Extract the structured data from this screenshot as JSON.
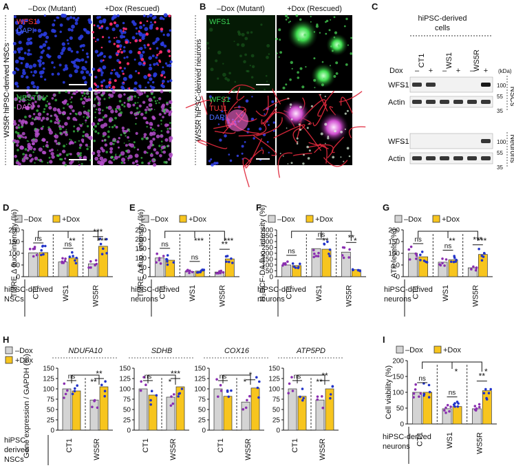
{
  "panel_letters": [
    "A",
    "B",
    "C",
    "D",
    "E",
    "F",
    "G",
    "H",
    "I"
  ],
  "panelA": {
    "col_labels": [
      "–Dox (Mutant)",
      "+Dox (Rescued)"
    ],
    "side_label": "WS5R hiPSC-derived NSCs",
    "top_stains": [
      {
        "text": "WFS1",
        "color": "#ff3b3b"
      },
      {
        "text": "DAPI",
        "color": "#4b6bff"
      }
    ],
    "bottom_stains": [
      {
        "text": "NESTIN",
        "color": "#39d353"
      },
      {
        "text": "DAPI",
        "color": "#e36be3"
      }
    ]
  },
  "panelB": {
    "col_labels": [
      "–Dox (Mutant)",
      "+Dox (Rescued)"
    ],
    "side_label": "WS5R hiPSC-derived neurons",
    "top_stains": [
      {
        "text": "WFS1",
        "color": "#39d353"
      }
    ],
    "bottom_stains": [
      {
        "text": "WFS1",
        "color": "#39d353"
      },
      {
        "text": "TUJ1",
        "color": "#ff3b3b"
      },
      {
        "text": "DAPI",
        "color": "#4b6bff"
      }
    ]
  },
  "panelC": {
    "header": "hiPSC-derived cells",
    "lines": [
      "CT1",
      "WS1",
      "WS5R"
    ],
    "dox_label": "Dox",
    "dox_signs": [
      "–",
      "+",
      "–",
      "+",
      "–",
      "+"
    ],
    "kda": "(kDa)",
    "rows": [
      {
        "label": "WFS1",
        "markers": [
          "100"
        ]
      },
      {
        "label": "Actin",
        "markers": [
          "55",
          "35"
        ]
      },
      {
        "label": "WFS1",
        "markers": [
          "100"
        ]
      },
      {
        "label": "Actin",
        "markers": [
          "55",
          "35"
        ]
      }
    ],
    "groups": [
      "NSCs",
      "Neurons"
    ]
  },
  "legend": {
    "minus": "–Dox",
    "plus": "+Dox"
  },
  "colors": {
    "minus_bar": "#d4d4d4",
    "plus_bar": "#f7c51e",
    "dot_purple": "#8a2fb0",
    "dot_blue": "#2233c8"
  },
  "chart_data": [
    {
      "panel": "D",
      "type": "bar",
      "ylabel": "TMRE Δ fluo. intensity (%)",
      "ylim": [
        0,
        200
      ],
      "yticks": [
        0,
        50,
        100,
        150,
        200
      ],
      "categories": [
        "CT1",
        "WS1",
        "WS5R"
      ],
      "row_label": "hiPSC-derived NSCs",
      "series": [
        {
          "name": "–Dox",
          "values": [
            102,
            63,
            55
          ]
        },
        {
          "name": "+Dox",
          "values": [
            103,
            80,
            130
          ]
        }
      ],
      "annotations": {
        "pairs": [
          "ns",
          "ns",
          "***"
        ],
        "brackets": [
          "**",
          "***"
        ]
      }
    },
    {
      "panel": "E",
      "type": "bar",
      "ylabel": "TMRE Δ fluo. intensity (%)",
      "ylim": [
        0,
        250
      ],
      "yticks": [
        0,
        50,
        100,
        150,
        200,
        250
      ],
      "categories": [
        "CT1",
        "WS1",
        "WS5R"
      ],
      "row_label": "hiPSC-derived neurons",
      "series": [
        {
          "name": "–Dox",
          "values": [
            100,
            28,
            25
          ]
        },
        {
          "name": "+Dox",
          "values": [
            88,
            30,
            95
          ]
        }
      ],
      "annotations": {
        "pairs": [
          "ns",
          "ns",
          "**"
        ],
        "brackets": [
          "***",
          "***"
        ]
      }
    },
    {
      "panel": "F",
      "type": "bar",
      "ylabel": "H₂DCF-DA fluo. intensity (%)",
      "ylim": [
        0,
        400
      ],
      "yticks": [
        0,
        50,
        100,
        150,
        200,
        250,
        300,
        350,
        400
      ],
      "categories": [
        "CT1",
        "WS1",
        "WS5R"
      ],
      "row_label": "hiPSC-derived neurons",
      "series": [
        {
          "name": "–Dox",
          "values": [
            100,
            240,
            210
          ]
        },
        {
          "name": "+Dox",
          "values": [
            95,
            235,
            60
          ]
        }
      ],
      "annotations": {
        "pairs": [
          "ns",
          "ns",
          "**"
        ],
        "brackets": [
          "**",
          "*"
        ]
      }
    },
    {
      "panel": "G",
      "type": "bar",
      "ylabel": "ATP levels (%)",
      "ylim": [
        0,
        200
      ],
      "yticks": [
        0,
        50,
        100,
        150,
        200
      ],
      "categories": [
        "CT1",
        "WS1",
        "WS5R"
      ],
      "row_label": "hiPSC-derived neurons",
      "series": [
        {
          "name": "–Dox",
          "values": [
            100,
            62,
            38
          ]
        },
        {
          "name": "+Dox",
          "values": [
            85,
            72,
            95
          ]
        }
      ],
      "annotations": {
        "pairs": [
          "ns",
          "ns",
          "***"
        ],
        "brackets": [
          "**",
          "***"
        ]
      }
    },
    {
      "panel": "H",
      "type": "bar",
      "ylabel": "Gene expression / GAPDH (%)",
      "ylim": [
        0,
        150
      ],
      "yticks": [
        0,
        25,
        50,
        75,
        100,
        125,
        150
      ],
      "categories": [
        "CT1",
        "WS5R"
      ],
      "row_label": "hiPSC-derived NSCs",
      "subplots": [
        {
          "gene": "NDUFA10",
          "minus": [
            100,
            73
          ],
          "plus": [
            95,
            105
          ],
          "pairs": [
            "ns",
            "**"
          ],
          "bracket": "**"
        },
        {
          "gene": "SDHB",
          "minus": [
            100,
            80
          ],
          "plus": [
            85,
            105
          ],
          "pairs": [
            "ns",
            "***"
          ],
          "bracket": "*"
        },
        {
          "gene": "COX16",
          "minus": [
            100,
            68
          ],
          "plus": [
            82,
            102
          ],
          "pairs": [
            "ns",
            "*"
          ],
          "bracket": "*"
        },
        {
          "gene": "ATP5PD",
          "minus": [
            100,
            73
          ],
          "plus": [
            82,
            100
          ],
          "pairs": [
            "ns",
            "**"
          ],
          "bracket": "**"
        }
      ]
    },
    {
      "panel": "I",
      "type": "bar",
      "ylabel": "Cell viability (%)",
      "ylim": [
        0,
        200
      ],
      "yticks": [
        0,
        50,
        100,
        150,
        200
      ],
      "categories": [
        "CT1",
        "WS1",
        "WS5R"
      ],
      "row_label": "hiPSC-derived neurons",
      "series": [
        {
          "name": "–Dox",
          "values": [
            100,
            48,
            48
          ]
        },
        {
          "name": "+Dox",
          "values": [
            100,
            55,
            105
          ]
        }
      ],
      "annotations": {
        "pairs": [
          "ns",
          "ns",
          "**"
        ],
        "brackets": [
          "*",
          "*"
        ]
      }
    }
  ]
}
